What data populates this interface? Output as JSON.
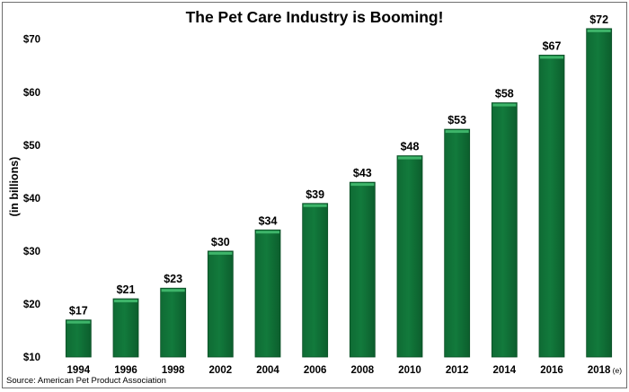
{
  "chart_data": {
    "type": "bar",
    "title": "The Pet Care Industry is Booming!",
    "ylabel": "(in billions)",
    "xlabel": "",
    "categories": [
      "1994",
      "1996",
      "1998",
      "2002",
      "2004",
      "2006",
      "2008",
      "2010",
      "2012",
      "2014",
      "2016",
      "2018"
    ],
    "category_suffix": {
      "11": "(e)"
    },
    "values": [
      17,
      21,
      23,
      30,
      34,
      39,
      43,
      48,
      53,
      58,
      67,
      72
    ],
    "value_labels": [
      "$17",
      "$21",
      "$23",
      "$30",
      "$34",
      "$39",
      "$43",
      "$48",
      "$53",
      "$58",
      "$67",
      "$72"
    ],
    "ylim": [
      10,
      73
    ],
    "yticks": [
      10,
      20,
      30,
      40,
      50,
      60,
      70
    ],
    "ytick_labels": [
      "$10",
      "$20",
      "$30",
      "$40",
      "$50",
      "$60",
      "$70"
    ],
    "grid": false,
    "legend": "none",
    "bar_color": "#127a3c",
    "bar_highlight_color": "#3eb56a",
    "source": "Source:  American Pet Product Association"
  }
}
